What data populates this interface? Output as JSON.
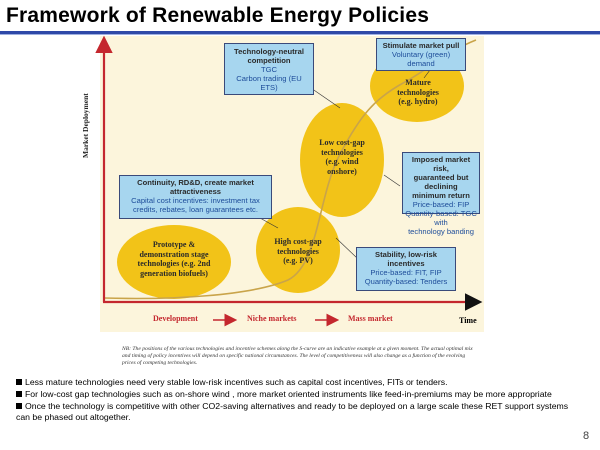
{
  "slide": {
    "title": "Framework of Renewable Energy Policies",
    "page_number": "8"
  },
  "diagram": {
    "y_axis_label": "Market Deployment",
    "x_axis_label": "Time",
    "phases": [
      "Development",
      "Niche markets",
      "Mass market"
    ],
    "stages": [
      {
        "lines": [
          "Prototype &",
          "demonstration stage",
          "technologies (e.g. 2nd",
          "generation biofuels)"
        ]
      },
      {
        "lines": [
          "High cost-gap",
          "technologies",
          "(e.g. PV)"
        ]
      },
      {
        "lines": [
          "Low cost-gap",
          "technologies",
          "(e.g. wind",
          "onshore)"
        ]
      },
      {
        "lines": [
          "Mature",
          "technologies",
          "(e.g. hydro)"
        ]
      }
    ],
    "boxes": {
      "tech_neutral": {
        "heading": [
          "Technology-neutral",
          "competition"
        ],
        "sub": [
          "TGC",
          "Carbon trading (EU ETS)"
        ]
      },
      "market_pull": {
        "heading": [
          "Stimulate market pull"
        ],
        "sub": [
          "Voluntary (green)",
          "demand"
        ]
      },
      "imposed_risk": {
        "heading": [
          "Imposed market risk,",
          "guaranteed but declining",
          "minimum return"
        ],
        "sub": [
          "Price-based: FIP",
          "Quantity-based: TGC with",
          "technology banding"
        ]
      },
      "continuity": {
        "heading": [
          "Continuity, RD&D, create market",
          "attractiveness"
        ],
        "sub": [
          "Capital cost incentives: investment tax",
          "credits, rebates, loan guarantees etc."
        ]
      },
      "stability": {
        "heading": [
          "Stability, low-risk",
          "incentives"
        ],
        "sub": [
          "Price-based: FIT, FIP",
          "Quantity-based: Tenders"
        ]
      }
    },
    "note": "NB: The positions of the various technologies and incentive schemes along the S-curve are an indicative example at a given moment. The actual optimal mix and timing of policy incentives will depend on specific national circumstances. The level of competitiveness will also change as a function of the evolving prices of competing technologies.",
    "colors": {
      "panel": "#fcf5dc",
      "stage_fill": "#f2c318",
      "box_fill": "#a7d6ef",
      "axis": "#c4272e",
      "curve": "#c9a44a"
    }
  },
  "bullets": [
    "Less mature technologies need very  stable low-risk incentives such as capital cost incentives, FITs or tenders.",
    "For low-cost gap technologies such as on-shore wind , more market oriented instruments like feed-in-premiums may be more appropriate",
    "Once the technology is competitive with other CO2-saving alternatives and ready to be deployed on a large scale these RET support systems can be phased out altogether."
  ]
}
